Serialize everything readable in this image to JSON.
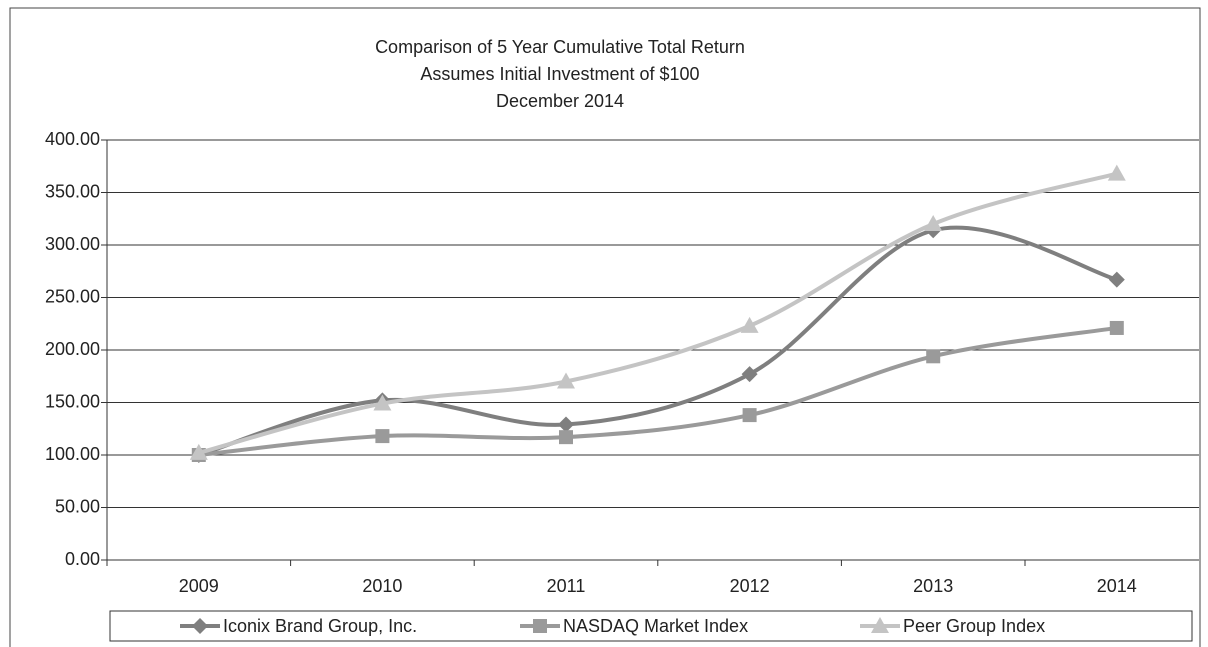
{
  "chart_data": {
    "type": "line",
    "title": "Comparison of 5 Year Cumulative Total Return",
    "subtitle": [
      "Assumes Initial Investment of $100",
      "December 2014"
    ],
    "categories": [
      "2009",
      "2010",
      "2011",
      "2012",
      "2013",
      "2014"
    ],
    "series": [
      {
        "name": "Iconix Brand Group, Inc.",
        "color": "#7f7f7f",
        "marker": "diamond",
        "values": [
          100,
          152,
          129,
          177,
          314,
          267
        ]
      },
      {
        "name": "NASDAQ Market Index",
        "color": "#9a9a9a",
        "marker": "square",
        "values": [
          100,
          118,
          117,
          138,
          194,
          221
        ]
      },
      {
        "name": "Peer Group Index",
        "color": "#c4c4c4",
        "marker": "triangle",
        "values": [
          102,
          149,
          170,
          223,
          320,
          368
        ]
      }
    ],
    "ylim": [
      0,
      400
    ],
    "yticks": [
      {
        "value": 0,
        "label": "0.00"
      },
      {
        "value": 50,
        "label": "50.00"
      },
      {
        "value": 100,
        "label": "100.00"
      },
      {
        "value": 150,
        "label": "150.00"
      },
      {
        "value": 200,
        "label": "200.00"
      },
      {
        "value": 250,
        "label": "250.00"
      },
      {
        "value": 300,
        "label": "300.00"
      },
      {
        "value": 350,
        "label": "350.00"
      },
      {
        "value": 400,
        "label": "400.00"
      }
    ],
    "grid": true,
    "smooth": true,
    "legend": "bottom"
  }
}
